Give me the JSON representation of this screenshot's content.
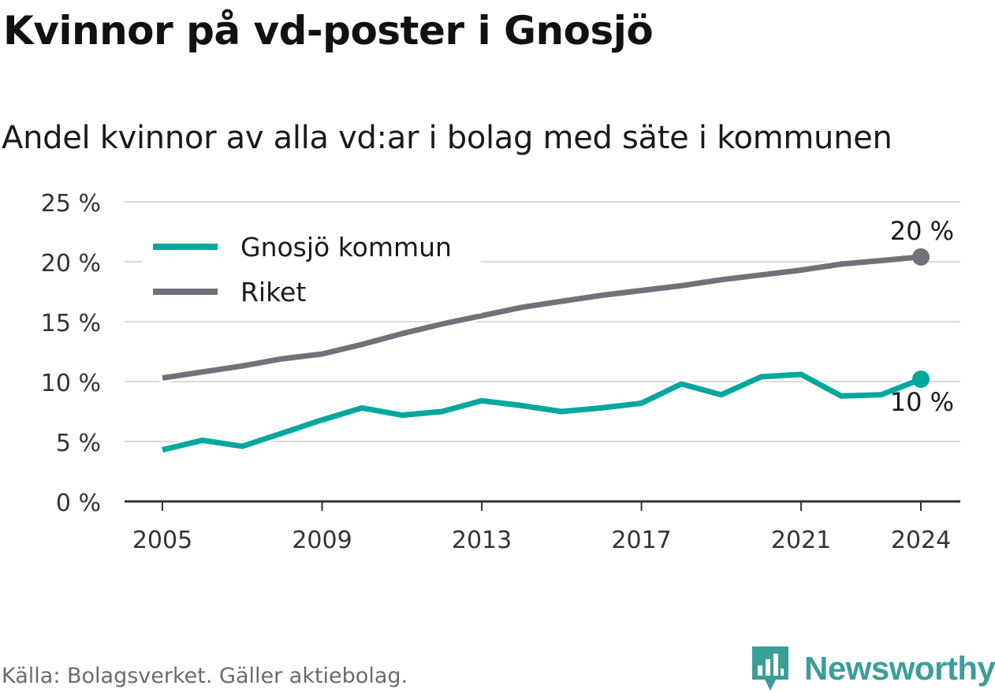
{
  "title": "Kvinnor på vd-poster i Gnosjö",
  "subtitle": "Andel kvinnor av alla vd:ar i bolag med säte i kommunen",
  "source": "Källa: Bolagsverket. Gäller aktiebolag.",
  "brand": {
    "name": "Newsworthy",
    "icon": "newsworthy-logo-icon",
    "color": "#3a9e99"
  },
  "chart_data": {
    "type": "line",
    "x": [
      2005,
      2006,
      2007,
      2008,
      2009,
      2010,
      2011,
      2012,
      2013,
      2014,
      2015,
      2016,
      2017,
      2018,
      2019,
      2020,
      2021,
      2022,
      2023,
      2024
    ],
    "series": [
      {
        "name": "Gnosjö kommun",
        "color": "#00a79d",
        "values": [
          4.3,
          5.1,
          4.6,
          5.7,
          6.8,
          7.8,
          7.2,
          7.5,
          8.4,
          8.0,
          7.5,
          7.8,
          8.2,
          9.8,
          8.9,
          10.4,
          10.6,
          8.8,
          8.9,
          10.2
        ],
        "end_label": "10 %"
      },
      {
        "name": "Riket",
        "color": "#727179",
        "values": [
          10.3,
          10.8,
          11.3,
          11.9,
          12.3,
          13.1,
          14.0,
          14.8,
          15.5,
          16.2,
          16.7,
          17.2,
          17.6,
          18.0,
          18.5,
          18.9,
          19.3,
          19.8,
          20.1,
          20.4
        ],
        "end_label": "20 %"
      }
    ],
    "xticks": [
      2005,
      2009,
      2013,
      2017,
      2021,
      2024
    ],
    "yticks": [
      0,
      5,
      10,
      15,
      20,
      25
    ],
    "ytick_labels": [
      "0 %",
      "5 %",
      "10 %",
      "15 %",
      "20 %",
      "25 %"
    ],
    "ylim": [
      0,
      25
    ],
    "xlim": [
      2004,
      2025
    ],
    "grid": "horizontal",
    "legend_position": "top-left",
    "xlabel": "",
    "ylabel": ""
  }
}
